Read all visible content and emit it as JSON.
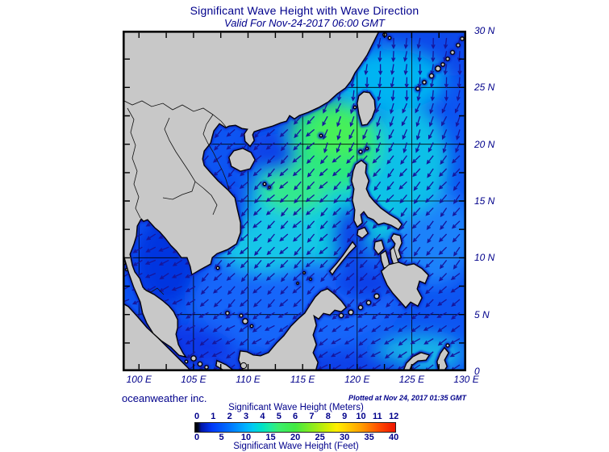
{
  "title": "Significant Wave Height with Wave Direction",
  "subtitle": "Valid For Nov-24-2017 06:00 GMT",
  "credit": "oceanweather inc.",
  "plotted_note": "Plotted at Nov 24, 2017 01:35 GMT",
  "colors": {
    "text": "#00008b",
    "land": "#c8c8c8",
    "coast_line": "#000000",
    "coast_fringe": "#0a2fd0",
    "coast_fringe_dark": "#041058",
    "arrow": "#16169c",
    "grid": "#000000",
    "ocean_base": "#0d55f2"
  },
  "map_axes": {
    "lat_labels": [
      "30 N",
      "25 N",
      "20 N",
      "15 N",
      "10 N",
      "5 N",
      "0"
    ],
    "lon_labels": [
      "100 E",
      "105 E",
      "110 E",
      "115 E",
      "120 E",
      "125 E",
      "130 E"
    ]
  },
  "legend": {
    "meters_title": "Significant Wave Height (Meters)",
    "feet_title": "Significant Wave Height (Feet)",
    "meters_ticks": [
      "0",
      "1",
      "2",
      "3",
      "4",
      "5",
      "6",
      "7",
      "8",
      "9",
      "10",
      "11",
      "12"
    ],
    "feet_ticks": [
      "0",
      "5",
      "10",
      "15",
      "20",
      "25",
      "30",
      "35",
      "40"
    ],
    "gradient_stops": [
      [
        0,
        "#000000"
      ],
      [
        1.5,
        "#000820"
      ],
      [
        3,
        "#0014a8"
      ],
      [
        8.3,
        "#0038f8"
      ],
      [
        16.7,
        "#0070ff"
      ],
      [
        25,
        "#00b0ff"
      ],
      [
        29,
        "#00ccf0"
      ],
      [
        33.3,
        "#00e2c8"
      ],
      [
        37.5,
        "#1eeca0"
      ],
      [
        41.7,
        "#3cee6e"
      ],
      [
        50,
        "#42ea42"
      ],
      [
        58.3,
        "#8aec1e"
      ],
      [
        66.7,
        "#d8ee00"
      ],
      [
        70.8,
        "#ffee00"
      ],
      [
        75,
        "#ffd400"
      ],
      [
        83.3,
        "#ff9c00"
      ],
      [
        91.7,
        "#ff4e00"
      ],
      [
        100,
        "#ee1400"
      ]
    ]
  },
  "chart_data": {
    "type": "heatmap",
    "title": "Significant Wave Height with Wave Direction",
    "valid_time": "Nov-24-2017 06:00 GMT",
    "plotted_time": "Nov 24, 2017 01:35 GMT",
    "region": {
      "lon_range": [
        "100 E",
        "130 E"
      ],
      "lat_range": [
        "0",
        "30 N"
      ]
    },
    "colorbar_meters": [
      0,
      1,
      2,
      3,
      4,
      5,
      6,
      7,
      8,
      9,
      10,
      11,
      12
    ],
    "colorbar_feet": [
      0,
      5,
      10,
      15,
      20,
      25,
      30,
      35,
      40
    ],
    "field_summary": "Wave heights mostly 1-3 m (blue/cyan) across the South China Sea, peaking near 4-5 m (green) in and west of the Luzon Strait; arrows indicate wave direction, predominantly toward the southwest."
  }
}
